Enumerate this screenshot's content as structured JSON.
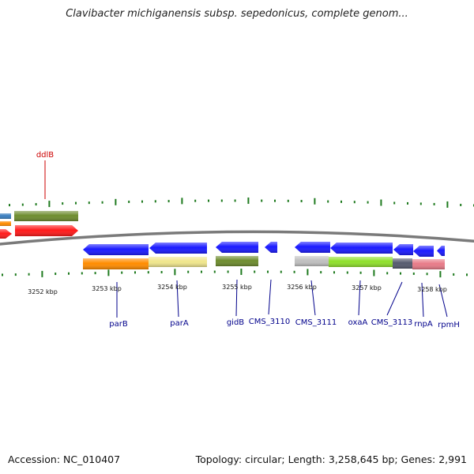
{
  "title": "Clavibacter michiganensis subsp. sepedonicus, complete genom...",
  "footer": {
    "accession": "Accession: NC_010407",
    "stats": "Topology: circular; Length: 3,258,645 bp; Genes: 2,991"
  },
  "colors": {
    "backbone": "#808080",
    "tick": "#1e7a1e",
    "label_blue": "#00008b",
    "label_red": "#cc0000",
    "cds_blue": "#1a1aff",
    "cds_red": "#ff1a1a"
  },
  "kbp_labels": [
    "3252 kbp",
    "3253 kbp",
    "3254 kbp",
    "3255 kbp",
    "3256 kbp",
    "3257 kbp",
    "3258 kbp"
  ],
  "gene_labels": [
    {
      "name": "ddlB",
      "color": "#cc0000"
    },
    {
      "name": "parB",
      "color": "#00008b"
    },
    {
      "name": "parA",
      "color": "#00008b"
    },
    {
      "name": "gidB",
      "color": "#00008b"
    },
    {
      "name": "CMS_3110",
      "color": "#00008b"
    },
    {
      "name": "CMS_3111",
      "color": "#00008b"
    },
    {
      "name": "oxaA",
      "color": "#00008b"
    },
    {
      "name": "CMS_3113",
      "color": "#00008b"
    },
    {
      "name": "rnpA",
      "color": "#00008b"
    },
    {
      "name": "rpmH",
      "color": "#00008b"
    }
  ]
}
